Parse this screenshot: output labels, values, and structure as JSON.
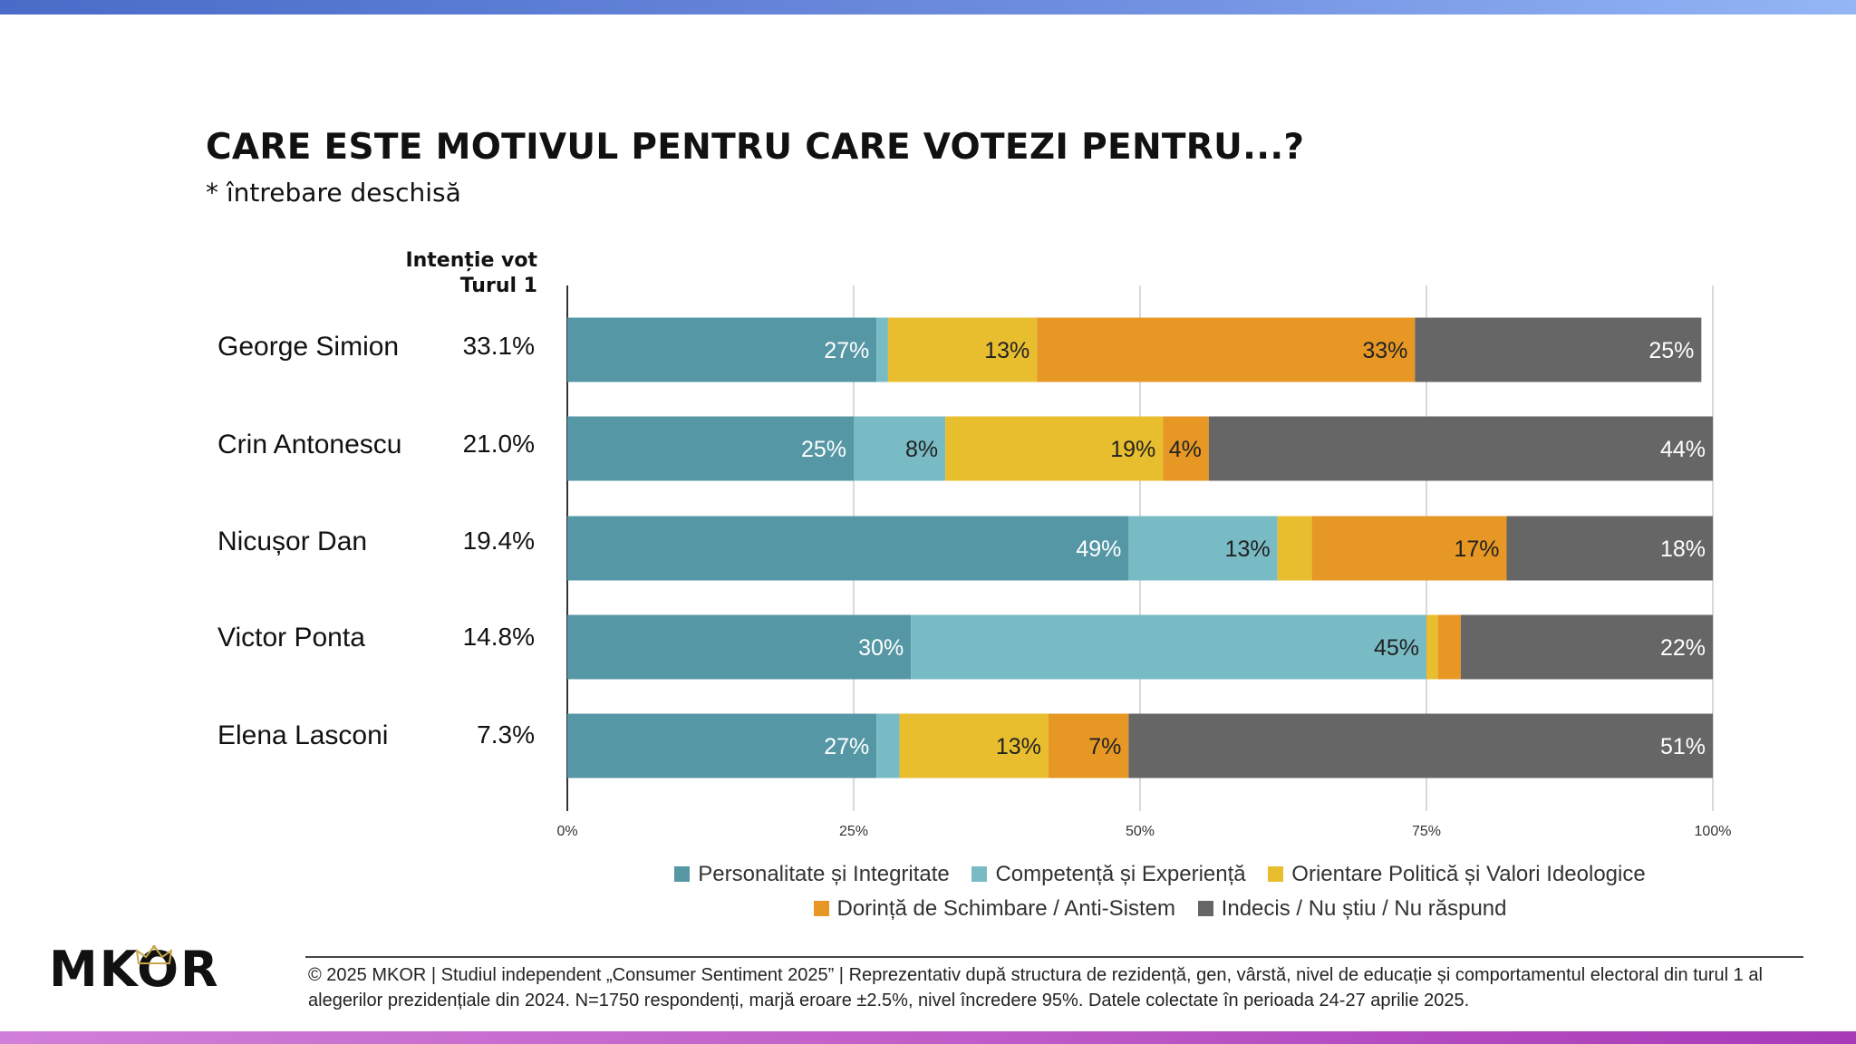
{
  "title": "CARE ESTE MOTIVUL PENTRU CARE VOTEZI PENTRU...?",
  "subtitle": "* întrebare deschisă",
  "vote_intention_header": [
    "Intenție vot",
    "Turul 1"
  ],
  "legend": [
    {
      "label": "Personalitate și Integritate",
      "color": "#5597a5"
    },
    {
      "label": "Competență și Experiență",
      "color": "#78bbc4"
    },
    {
      "label": "Orientare Politică și Valori Ideologice",
      "color": "#e8bd2e"
    },
    {
      "label": "Dorință de Schimbare / Anti-Sistem",
      "color": "#e69724"
    },
    {
      "label": "Indecis / Nu știu / Nu răspund",
      "color": "#666666"
    }
  ],
  "logo": "MKOR",
  "footer": "© 2025 MKOR | Studiul independent „Consumer Sentiment 2025” | Reprezentativ după structura de rezidență, gen, vârstă, nivel de educație și comportamentul electoral din turul 1 al alegerilor prezidențiale din 2024. N=1750 respondenți, marjă eroare ±2.5%, nivel încredere 95%. Datele colectate în perioada 24-27 aprilie 2025.",
  "chart_data": {
    "type": "bar",
    "orientation": "horizontal",
    "stacked": true,
    "title": "CARE ESTE MOTIVUL PENTRU CARE VOTEZI PENTRU...?",
    "categories": [
      "George Simion",
      "Crin Antonescu",
      "Nicușor Dan",
      "Victor Ponta",
      "Elena Lasconi"
    ],
    "vote_intention": [
      "33.1%",
      "21.0%",
      "19.4%",
      "14.8%",
      "7.3%"
    ],
    "series": [
      {
        "name": "Personalitate și Integritate",
        "values": [
          27,
          25,
          49,
          30,
          27
        ],
        "labels": [
          "27%",
          "25%",
          "49%",
          "30%",
          "27%"
        ]
      },
      {
        "name": "Competență și Experiență",
        "values": [
          1,
          8,
          13,
          45,
          2
        ],
        "labels": [
          "",
          "8%",
          "13%",
          "45%",
          ""
        ]
      },
      {
        "name": "Orientare Politică și Valori Ideologice",
        "values": [
          13,
          19,
          3,
          1,
          13
        ],
        "labels": [
          "13%",
          "19%",
          "",
          "",
          "13%"
        ]
      },
      {
        "name": "Dorință de Schimbare / Anti-Sistem",
        "values": [
          33,
          4,
          17,
          2,
          7
        ],
        "labels": [
          "33%",
          "4%",
          "17%",
          "",
          "7%"
        ]
      },
      {
        "name": "Indecis / Nu știu / Nu răspund",
        "values": [
          25,
          44,
          18,
          22,
          51
        ],
        "labels": [
          "25%",
          "44%",
          "18%",
          "22%",
          "51%"
        ]
      }
    ],
    "xlim": [
      0,
      100
    ],
    "x_ticks": [
      "0%",
      "25%",
      "50%",
      "75%",
      "100%"
    ],
    "grid": true,
    "legend_position": "bottom"
  }
}
